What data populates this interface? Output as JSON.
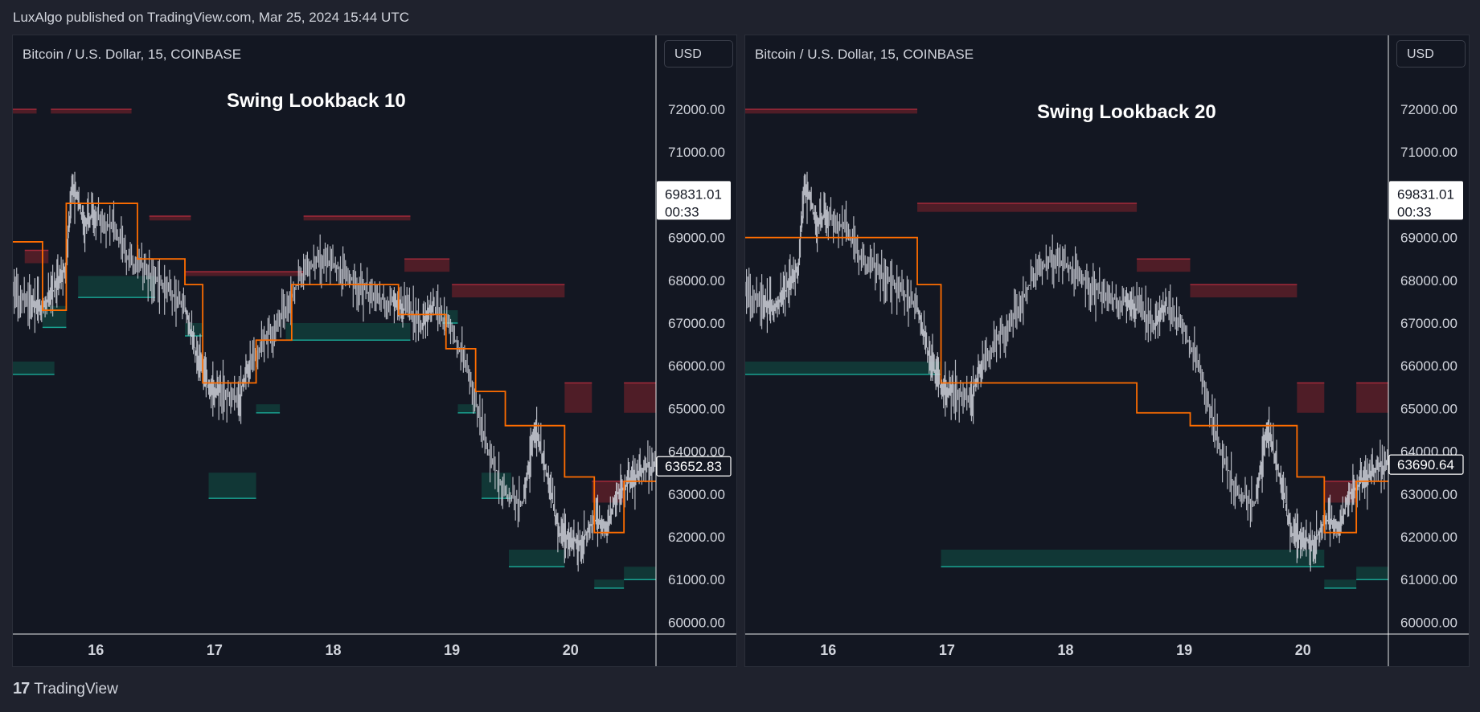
{
  "header": {
    "published_text": "LuxAlgo published on TradingView.com, Mar 25, 2024 15:44 UTC"
  },
  "footer": {
    "logo_mark": "17",
    "brand_name": "TradingView"
  },
  "colors": {
    "background": "#131722",
    "page_bg": "#1f222d",
    "candle": "#d1d4dc",
    "trailing_line": "#ff6d00",
    "bear_zone": "#5a1f28",
    "bear_edge": "#a32a3a",
    "bull_zone": "#123b38",
    "bull_edge": "#19a392",
    "axis_text": "#d1d4dc"
  },
  "panels": [
    {
      "symbol": "Bitcoin / U.S. Dollar, 15, COINBASE",
      "currency": "USD",
      "title": "Swing Lookback 10",
      "price_label_top": "69831.01",
      "countdown": "00:33",
      "last_price_label": "63652.83"
    },
    {
      "symbol": "Bitcoin / U.S. Dollar, 15, COINBASE",
      "currency": "USD",
      "title": "Swing Lookback 20",
      "price_label_top": "69831.01",
      "countdown": "00:33",
      "last_price_label": "63690.64"
    }
  ],
  "chart_data": [
    {
      "type": "line",
      "title": "Swing Lookback 10",
      "y_ticks": [
        72000,
        71000,
        70000,
        69000,
        68000,
        67000,
        66000,
        65000,
        64000,
        63000,
        62000,
        61000,
        60000
      ],
      "y_tick_labels": [
        "72000.00",
        "71000.00",
        "70000.00",
        "69000.00",
        "68000.00",
        "67000.00",
        "66000.00",
        "65000.00",
        "64000.00",
        "63000.00",
        "62000.00",
        "61000.00",
        "60000.00"
      ],
      "x_ticks": [
        "16",
        "17",
        "18",
        "19",
        "20"
      ],
      "ylim": [
        59700,
        72800
      ],
      "xlim": [
        15.3,
        20.72
      ],
      "price": {
        "name": "BTC/USD",
        "x": [
          15.3,
          15.45,
          15.55,
          15.65,
          15.75,
          15.8,
          15.9,
          16.0,
          16.15,
          16.3,
          16.45,
          16.6,
          16.75,
          16.85,
          16.95,
          17.05,
          17.2,
          17.3,
          17.45,
          17.6,
          17.75,
          17.9,
          18.05,
          18.2,
          18.35,
          18.5,
          18.6,
          18.75,
          18.85,
          19.0,
          19.15,
          19.3,
          19.45,
          19.6,
          19.7,
          19.8,
          19.9,
          20.0,
          20.1,
          20.2,
          20.3,
          20.4,
          20.5,
          20.6,
          20.72
        ],
        "y": [
          67700,
          67500,
          67300,
          67800,
          68300,
          70300,
          69400,
          69500,
          69200,
          68400,
          68200,
          67800,
          67400,
          66200,
          65500,
          65400,
          65200,
          66100,
          66700,
          67300,
          68200,
          68500,
          68300,
          67900,
          67600,
          67500,
          67300,
          67000,
          67400,
          66800,
          65700,
          64100,
          63000,
          62800,
          64500,
          63500,
          62100,
          61900,
          61900,
          62400,
          62200,
          63000,
          63300,
          63600,
          63650
        ]
      },
      "trailing_extremity_steps": [
        [
          15.3,
          68900
        ],
        [
          15.55,
          67300
        ],
        [
          15.75,
          69800
        ],
        [
          16.35,
          68500
        ],
        [
          16.75,
          67900
        ],
        [
          16.9,
          65600
        ],
        [
          17.35,
          66600
        ],
        [
          17.65,
          67900
        ],
        [
          18.55,
          67200
        ],
        [
          18.95,
          66400
        ],
        [
          19.2,
          65400
        ],
        [
          19.45,
          64600
        ],
        [
          19.95,
          63400
        ],
        [
          20.2,
          62100
        ],
        [
          20.45,
          63300
        ],
        [
          20.72,
          63300
        ]
      ],
      "bearish_zones": [
        [
          15.3,
          15.5,
          72000,
          71900
        ],
        [
          15.62,
          16.3,
          72000,
          71900
        ],
        [
          16.45,
          16.8,
          69500,
          69400
        ],
        [
          16.75,
          17.75,
          68200,
          68100
        ],
        [
          17.75,
          18.65,
          69500,
          69400
        ],
        [
          18.6,
          18.98,
          68500,
          68200
        ],
        [
          19.0,
          19.95,
          67900,
          67600
        ],
        [
          19.95,
          20.18,
          65600,
          64900
        ],
        [
          20.45,
          20.72,
          65600,
          64900
        ],
        [
          20.18,
          20.45,
          63300,
          62800
        ],
        [
          15.4,
          15.6,
          68700,
          68400
        ]
      ],
      "bullish_zones": [
        [
          15.3,
          15.65,
          66100,
          65800
        ],
        [
          15.55,
          15.75,
          67400,
          66900
        ],
        [
          15.85,
          16.5,
          68100,
          67600
        ],
        [
          16.75,
          16.9,
          67000,
          66700
        ],
        [
          16.95,
          17.35,
          63500,
          62900
        ],
        [
          17.35,
          17.55,
          65100,
          64900
        ],
        [
          17.6,
          18.65,
          67000,
          66600
        ],
        [
          18.92,
          19.05,
          67300,
          67000
        ],
        [
          19.05,
          19.2,
          65100,
          64900
        ],
        [
          19.25,
          19.5,
          63500,
          62900
        ],
        [
          19.48,
          19.95,
          61700,
          61300
        ],
        [
          20.2,
          20.45,
          61000,
          60800
        ],
        [
          20.45,
          20.72,
          61300,
          61000
        ]
      ]
    },
    {
      "type": "line",
      "title": "Swing Lookback 20",
      "y_ticks": [
        72000,
        71000,
        70000,
        69000,
        68000,
        67000,
        66000,
        65000,
        64000,
        63000,
        62000,
        61000,
        60000
      ],
      "y_tick_labels": [
        "72000.00",
        "71000.00",
        "70000.00",
        "69000.00",
        "68000.00",
        "67000.00",
        "66000.00",
        "65000.00",
        "64000.00",
        "63000.00",
        "62000.00",
        "61000.00",
        "60000.00"
      ],
      "x_ticks": [
        "16",
        "17",
        "18",
        "19",
        "20"
      ],
      "ylim": [
        59700,
        72800
      ],
      "xlim": [
        15.3,
        20.72
      ],
      "price": {
        "name": "BTC/USD",
        "x": [
          15.3,
          15.45,
          15.55,
          15.65,
          15.75,
          15.8,
          15.9,
          16.0,
          16.15,
          16.3,
          16.45,
          16.6,
          16.75,
          16.85,
          16.95,
          17.05,
          17.2,
          17.3,
          17.45,
          17.6,
          17.75,
          17.9,
          18.05,
          18.2,
          18.35,
          18.5,
          18.6,
          18.75,
          18.85,
          19.0,
          19.15,
          19.3,
          19.45,
          19.6,
          19.7,
          19.8,
          19.9,
          20.0,
          20.1,
          20.2,
          20.3,
          20.4,
          20.5,
          20.6,
          20.72
        ],
        "y": [
          67700,
          67500,
          67300,
          67800,
          68300,
          70300,
          69400,
          69500,
          69200,
          68400,
          68200,
          67800,
          67400,
          66200,
          65500,
          65400,
          65200,
          66100,
          66700,
          67300,
          68200,
          68500,
          68300,
          67900,
          67600,
          67500,
          67300,
          67000,
          67400,
          66800,
          65700,
          64100,
          63000,
          62800,
          64500,
          63500,
          62100,
          61900,
          61900,
          62400,
          62200,
          63000,
          63300,
          63600,
          63690
        ]
      },
      "trailing_extremity_steps": [
        [
          15.3,
          69000
        ],
        [
          16.75,
          67900
        ],
        [
          16.95,
          65600
        ],
        [
          18.6,
          64900
        ],
        [
          19.05,
          64600
        ],
        [
          19.95,
          63400
        ],
        [
          20.18,
          62100
        ],
        [
          20.45,
          63300
        ],
        [
          20.72,
          63300
        ]
      ],
      "bearish_zones": [
        [
          15.3,
          16.75,
          72000,
          71900
        ],
        [
          16.75,
          18.6,
          69800,
          69600
        ],
        [
          18.6,
          19.05,
          68500,
          68200
        ],
        [
          19.05,
          19.95,
          67900,
          67600
        ],
        [
          19.95,
          20.18,
          65600,
          64900
        ],
        [
          20.45,
          20.72,
          65600,
          64900
        ],
        [
          20.18,
          20.45,
          63300,
          62800
        ]
      ],
      "bullish_zones": [
        [
          15.3,
          16.95,
          66100,
          65800
        ],
        [
          16.95,
          20.18,
          61700,
          61300
        ],
        [
          20.18,
          20.45,
          61000,
          60800
        ],
        [
          20.45,
          20.72,
          61300,
          61000
        ]
      ]
    }
  ]
}
